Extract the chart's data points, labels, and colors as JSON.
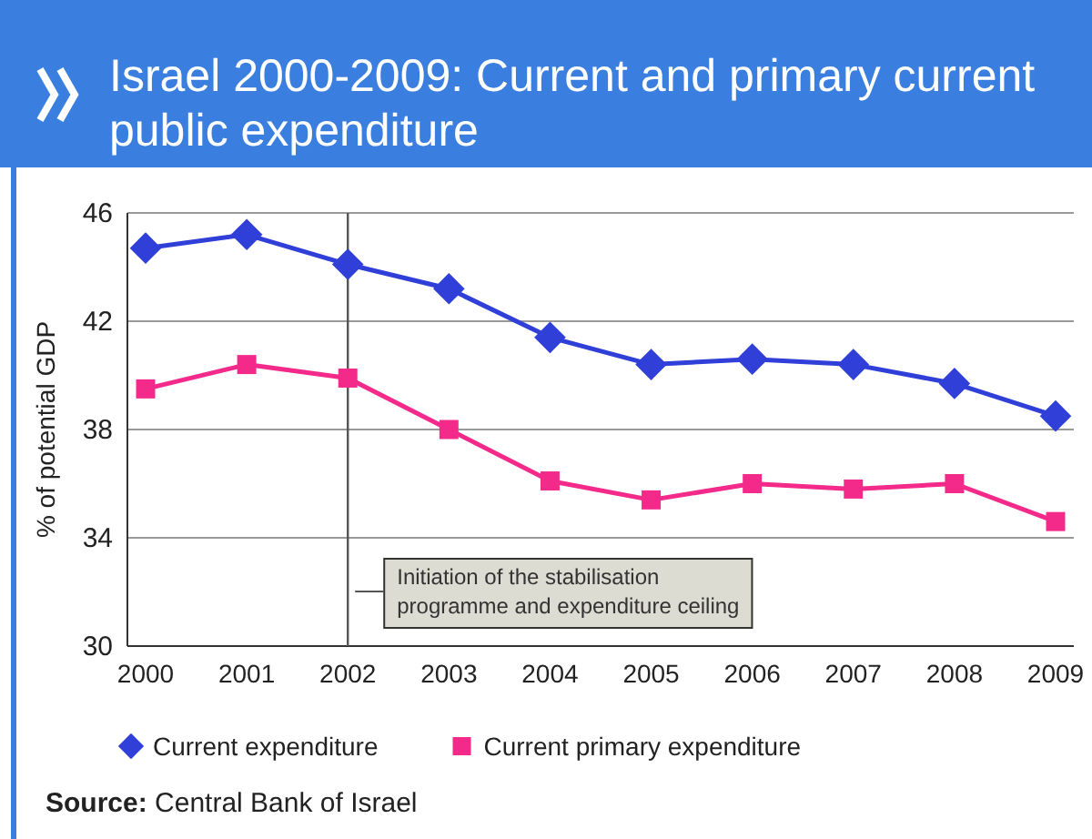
{
  "chart_data": {
    "type": "line",
    "title": "Israel 2000-2009: Current and primary current public expenditure",
    "ylabel": "% of potential GDP",
    "categories": [
      "2000",
      "2001",
      "2002",
      "2003",
      "2004",
      "2005",
      "2006",
      "2007",
      "2008",
      "2009"
    ],
    "series": [
      {
        "name": "Current expenditure",
        "color": "#2f3fd8",
        "marker": "diamond",
        "values": [
          44.7,
          45.2,
          44.1,
          43.2,
          41.4,
          40.4,
          40.6,
          40.4,
          39.7,
          38.5
        ]
      },
      {
        "name": "Current primary expenditure",
        "color": "#f42a8b",
        "marker": "square",
        "values": [
          39.5,
          40.4,
          39.9,
          38.0,
          36.1,
          35.4,
          36.0,
          35.8,
          36.0,
          34.6
        ]
      }
    ],
    "ylim": [
      30,
      46
    ],
    "yticks": [
      30,
      34,
      38,
      42,
      46
    ],
    "grid": "y",
    "legend": "bottom",
    "ref_lines": [
      {
        "axis": "x",
        "value": "2002",
        "label": "Initiation of the stabilisation\nprogramme and expenditure ceiling",
        "color": "#555555"
      }
    ],
    "annotations": [
      "Source: Central Bank of Israel"
    ]
  }
}
